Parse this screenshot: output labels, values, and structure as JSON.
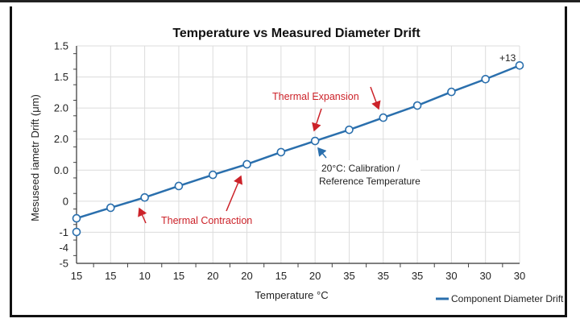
{
  "chart_data": {
    "type": "line",
    "title": "Temperature vs Measured Diameter Drift",
    "xlabel": "Temperature  °C",
    "ylabel": "Mesuseed iametr Drift (μm)",
    "x_tick_labels": [
      "15",
      "15",
      "10",
      "15",
      "20",
      "20",
      "15",
      "20",
      "35",
      "35",
      "35",
      "30",
      "30",
      "30"
    ],
    "y_ticks": [
      {
        "label": "1.5",
        "level": 7
      },
      {
        "label": "1.5",
        "level": 6
      },
      {
        "label": "2.0",
        "level": 5
      },
      {
        "label": "2.0",
        "level": 4
      },
      {
        "label": "0.0",
        "level": 3
      },
      {
        "label": "0",
        "level": 2
      },
      {
        "label": "-1",
        "level": 1
      },
      {
        "label": "-4",
        "level": 0.5
      },
      {
        "label": "-5",
        "level": 0
      }
    ],
    "y_range_levels": [
      0,
      7
    ],
    "grid": true,
    "series": [
      {
        "name": "Component Diameter Drift",
        "color": "#2a6fad",
        "x_index": [
          0,
          1,
          2,
          3,
          4,
          5,
          6,
          7,
          8,
          9,
          10,
          11,
          12,
          13
        ],
        "y_level": [
          1.45,
          1.79,
          2.12,
          2.49,
          2.85,
          3.19,
          3.58,
          3.94,
          4.3,
          4.69,
          5.08,
          5.52,
          5.93,
          6.37
        ]
      }
    ],
    "extra_points": [
      {
        "x_index": 0,
        "y_level": 1.01
      }
    ],
    "annotations": {
      "end_label": "+13",
      "expansion": "Thermal Expansion",
      "contraction": "Thermal Contraction",
      "calibration_line1": "20°C: Calibration /",
      "calibration_line2": "Reference Temperature"
    },
    "annotation_color": "#cc2229",
    "legend": {
      "placement": "bottom-right",
      "label": "Component Diameter Drift"
    }
  }
}
